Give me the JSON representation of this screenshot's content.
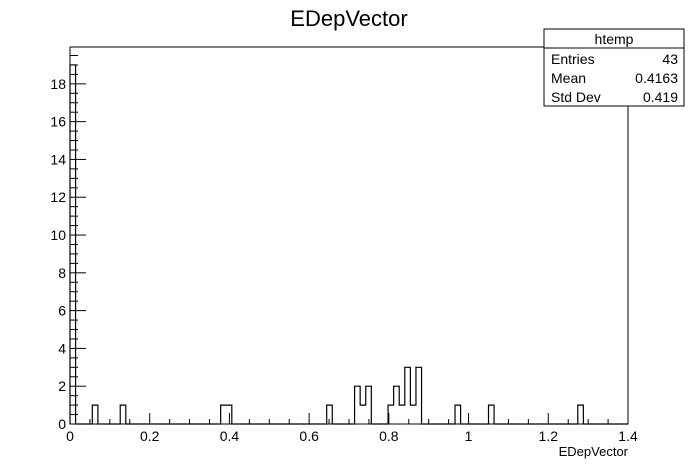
{
  "chart_data": {
    "type": "bar",
    "title": "EDepVector",
    "xlabel": "EDepVector",
    "ylabel": "",
    "xlim": [
      0,
      1.4
    ],
    "ylim": [
      0,
      19.95
    ],
    "bin_width": 0.014,
    "x_ticks": [
      "0",
      "0.2",
      "0.4",
      "0.6",
      "0.8",
      "1",
      "1.2",
      "1.4"
    ],
    "y_ticks": [
      "0",
      "2",
      "4",
      "6",
      "8",
      "10",
      "12",
      "14",
      "16",
      "18"
    ],
    "bins": [
      {
        "x": 0.0,
        "value": 19
      },
      {
        "x": 0.056,
        "value": 1
      },
      {
        "x": 0.126,
        "value": 1
      },
      {
        "x": 0.378,
        "value": 1
      },
      {
        "x": 0.392,
        "value": 1
      },
      {
        "x": 0.644,
        "value": 1
      },
      {
        "x": 0.714,
        "value": 2
      },
      {
        "x": 0.728,
        "value": 1
      },
      {
        "x": 0.742,
        "value": 2
      },
      {
        "x": 0.798,
        "value": 1
      },
      {
        "x": 0.812,
        "value": 2
      },
      {
        "x": 0.826,
        "value": 1
      },
      {
        "x": 0.84,
        "value": 3
      },
      {
        "x": 0.854,
        "value": 1
      },
      {
        "x": 0.868,
        "value": 3
      },
      {
        "x": 0.966,
        "value": 1
      },
      {
        "x": 1.05,
        "value": 1
      },
      {
        "x": 1.274,
        "value": 1
      }
    ],
    "legend_position": "top-right"
  },
  "stats": {
    "name": "htemp",
    "rows": [
      {
        "label": "Entries",
        "value": "43"
      },
      {
        "label": "Mean",
        "value": "0.4163"
      },
      {
        "label": "Std Dev",
        "value": "0.419"
      }
    ]
  },
  "colors": {
    "line": "#000000",
    "background": "#ffffff"
  }
}
